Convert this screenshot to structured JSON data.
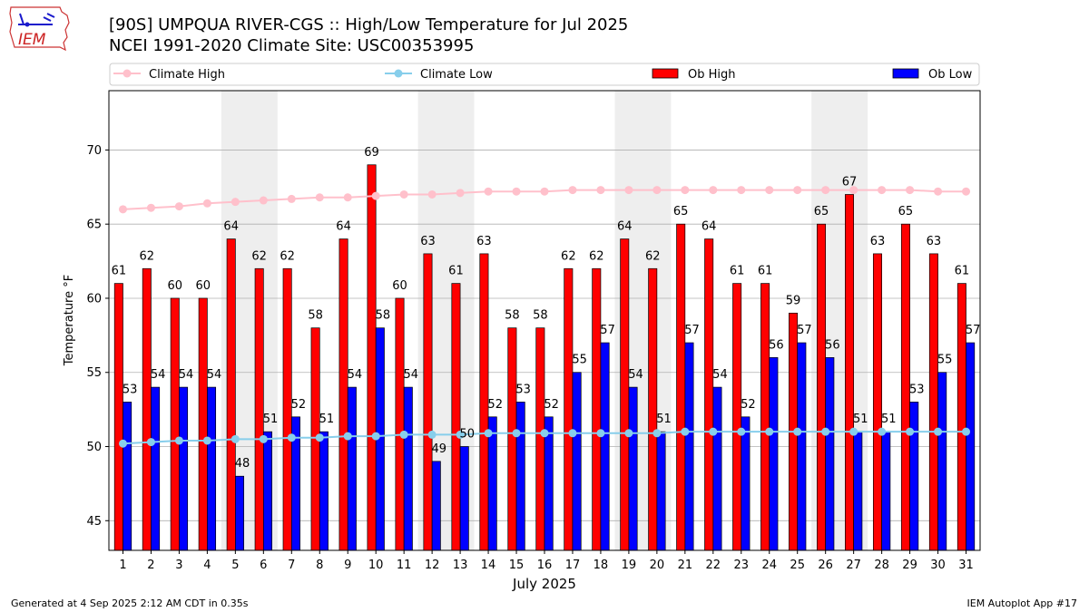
{
  "header": {
    "title_line1": "[90S] UMPQUA RIVER-CGS :: High/Low Temperature for Jul 2025",
    "title_line2": "NCEI 1991-2020 Climate Site: USC00353995"
  },
  "logo": {
    "text": "IEM"
  },
  "footer": {
    "generated": "Generated at 4 Sep 2025 2:12 AM CDT in 0.35s",
    "app": "IEM Autoplot App #17"
  },
  "colors": {
    "ob_high": "#ff0000",
    "ob_low": "#0000ff",
    "climate_high": "#ffc0cb",
    "climate_low": "#87ceeb",
    "weekend_shade": "#eeeeee",
    "grid": "#b0b0b0"
  },
  "chart_data": {
    "type": "bar",
    "title": "[90S] UMPQUA RIVER-CGS :: High/Low Temperature for Jul 2025",
    "subtitle": "NCEI 1991-2020 Climate Site: USC00353995",
    "xlabel": "July 2025",
    "ylabel": "Temperature °F",
    "ylim": [
      43,
      74
    ],
    "yticks": [
      45,
      50,
      55,
      60,
      65,
      70
    ],
    "grid": true,
    "legend_position": "top",
    "categories": [
      "1",
      "2",
      "3",
      "4",
      "5",
      "6",
      "7",
      "8",
      "9",
      "10",
      "11",
      "12",
      "13",
      "14",
      "15",
      "16",
      "17",
      "18",
      "19",
      "20",
      "21",
      "22",
      "23",
      "24",
      "25",
      "26",
      "27",
      "28",
      "29",
      "30",
      "31"
    ],
    "weekend_spans": [
      [
        5,
        6
      ],
      [
        12,
        13
      ],
      [
        19,
        20
      ],
      [
        26,
        27
      ]
    ],
    "series": [
      {
        "name": "Ob High",
        "kind": "bar",
        "values": [
          61,
          62,
          60,
          60,
          64,
          62,
          62,
          58,
          64,
          69,
          60,
          63,
          61,
          63,
          58,
          58,
          62,
          62,
          64,
          62,
          65,
          64,
          61,
          61,
          59,
          65,
          67,
          63,
          65,
          63,
          61
        ]
      },
      {
        "name": "Ob Low",
        "kind": "bar",
        "values": [
          53,
          54,
          54,
          54,
          48,
          51,
          52,
          51,
          54,
          58,
          54,
          49,
          50,
          52,
          53,
          52,
          55,
          57,
          54,
          51,
          57,
          54,
          52,
          56,
          57,
          56,
          51,
          51,
          53,
          55,
          57
        ]
      },
      {
        "name": "Climate High",
        "kind": "line",
        "values": [
          66.0,
          66.1,
          66.2,
          66.4,
          66.5,
          66.6,
          66.7,
          66.8,
          66.8,
          66.9,
          67.0,
          67.0,
          67.1,
          67.2,
          67.2,
          67.2,
          67.3,
          67.3,
          67.3,
          67.3,
          67.3,
          67.3,
          67.3,
          67.3,
          67.3,
          67.3,
          67.3,
          67.3,
          67.3,
          67.2,
          67.2
        ]
      },
      {
        "name": "Climate Low",
        "kind": "line",
        "values": [
          50.2,
          50.3,
          50.4,
          50.4,
          50.5,
          50.5,
          50.6,
          50.6,
          50.7,
          50.7,
          50.8,
          50.8,
          50.8,
          50.9,
          50.9,
          50.9,
          50.9,
          50.9,
          50.9,
          50.9,
          51.0,
          51.0,
          51.0,
          51.0,
          51.0,
          51.0,
          51.0,
          51.0,
          51.0,
          51.0,
          51.0
        ]
      }
    ],
    "legend": [
      "Climate High",
      "Climate Low",
      "Ob High",
      "Ob Low"
    ]
  }
}
